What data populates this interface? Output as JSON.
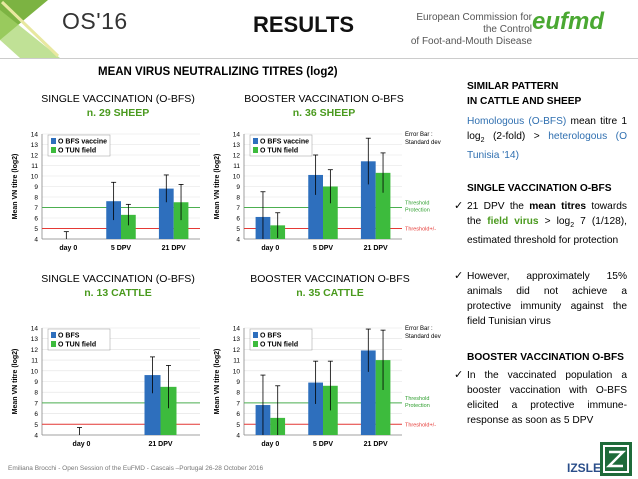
{
  "header": {
    "conference": "OS'16",
    "title": "RESULTS",
    "org_line1": "European Commission for the Control",
    "org_line2": "of Foot-and-Mouth Disease",
    "logo_text": "eufmd"
  },
  "main_title": "MEAN VIRUS NEUTRALIZING TITRES (log2)",
  "charts_meta": {
    "ylabel": "Mean VN titre (log2)",
    "error_bar_label1": "Error Bar :",
    "error_bar_label2": "Standard dev",
    "threshold_protection1": "Threshold",
    "threshold_protection2": "Protection",
    "threshold_pm": "Threshold+/-"
  },
  "chart_titles": [
    {
      "title": "SINGLE VACCINATION (O-BFS)",
      "n": "n. 29 SHEEP"
    },
    {
      "title": "BOOSTER VACCINATION O-BFS",
      "n": "n. 36 SHEEP"
    },
    {
      "title": "SINGLE VACCINATION (O-BFS)",
      "n": "n. 13 CATTLE"
    },
    {
      "title": "BOOSTER VACCINATION O-BFS",
      "n": "n. 35 CATTLE"
    }
  ],
  "chart_data": [
    {
      "type": "bar",
      "title": "SINGLE VACCINATION (O-BFS) n. 29 SHEEP",
      "categories": [
        "day 0",
        "5 DPV",
        "21 DPV"
      ],
      "series": [
        {
          "name": "O BFS vaccine",
          "values": [
            null,
            7.6,
            8.8
          ],
          "err": [
            0,
            1.8,
            1.3
          ]
        },
        {
          "name": "O TUN field",
          "values": [
            null,
            6.3,
            7.5
          ],
          "err": [
            0,
            1.0,
            1.7
          ]
        }
      ],
      "ylim": [
        4,
        14
      ],
      "ticks": [
        4,
        5,
        6,
        7,
        8,
        9,
        10,
        11,
        12,
        13,
        14
      ],
      "day0_err": 4.7,
      "thresholds": [
        7,
        5
      ],
      "side_labels": false
    },
    {
      "type": "bar",
      "title": "BOOSTER VACCINATION O-BFS n. 36 SHEEP",
      "categories": [
        "day 0",
        "5 DPV",
        "21 DPV"
      ],
      "series": [
        {
          "name": "O BFS vaccine",
          "values": [
            6.1,
            10.1,
            11.4
          ],
          "err": [
            2.4,
            1.9,
            2.2
          ]
        },
        {
          "name": "O TUN field",
          "values": [
            5.3,
            9.0,
            10.3
          ],
          "err": [
            1.2,
            1.6,
            1.9
          ]
        }
      ],
      "ylim": [
        4,
        14
      ],
      "ticks": [
        4,
        5,
        6,
        7,
        8,
        9,
        10,
        11,
        12,
        13,
        14
      ],
      "thresholds": [
        7,
        5
      ],
      "side_labels": true
    },
    {
      "type": "bar",
      "title": "SINGLE VACCINATION (O-BFS) n. 13 CATTLE",
      "categories": [
        "day 0",
        "21 DPV"
      ],
      "series": [
        {
          "name": "O BFS",
          "values": [
            null,
            9.6
          ],
          "err": [
            0,
            1.7
          ]
        },
        {
          "name": "O TUN field",
          "values": [
            null,
            8.5
          ],
          "err": [
            0,
            2.0
          ]
        }
      ],
      "ylim": [
        4,
        14
      ],
      "ticks": [
        4,
        5,
        6,
        7,
        8,
        9,
        10,
        11,
        12,
        13,
        14
      ],
      "day0_err": 4.7,
      "thresholds": [
        7,
        5
      ],
      "side_labels": false
    },
    {
      "type": "bar",
      "title": "BOOSTER VACCINATION O-BFS n. 35 CATTLE",
      "categories": [
        "day 0",
        "5 DPV",
        "21 DPV"
      ],
      "series": [
        {
          "name": "O BFS",
          "values": [
            6.8,
            8.9,
            11.9
          ],
          "err": [
            2.8,
            2.0,
            2.0
          ]
        },
        {
          "name": "O TUN field",
          "values": [
            5.6,
            8.6,
            11.0
          ],
          "err": [
            3.0,
            2.3,
            2.8
          ]
        }
      ],
      "ylim": [
        4,
        14
      ],
      "ticks": [
        4,
        5,
        6,
        7,
        8,
        9,
        10,
        11,
        12,
        13,
        14
      ],
      "thresholds": [
        7,
        5
      ],
      "side_labels": true
    }
  ],
  "right": {
    "similar_h1": "SIMILAR PATTERN",
    "similar_h2": "IN CATTLE AND SHEEP",
    "homologous": "Homologous (O-BFS)",
    "mean_titre": " mean titre",
    "one_log": "1 log",
    "sub2": "2",
    "twofold": " (2-fold) > ",
    "heterologous": "heterologous (O Tunisia '14)",
    "single_h": "SINGLE VACCINATION O-BFS",
    "b1_a": "21 DPV the ",
    "b1_b": "mean titres",
    "b1_c": " towards the ",
    "b1_d": "field virus",
    "b1_e": " > log",
    "b1_f": " 7 (1/128), estimated threshold for protection",
    "b2": "However, approximately 15% animals did not achieve a protective immunity against the field Tunisian virus",
    "booster_h": "BOOSTER VACCINATION O-BFS",
    "b3": "In the vaccinated population a booster vaccination with O-BFS elicited a protective immune-response as soon as 5 DPV",
    "check": "✓"
  },
  "footer": "Emiliana Brocchi - Open Session of the EuFMD - Cascais –Portugal 26-28 October 2016",
  "izsler": "IZSLER"
}
